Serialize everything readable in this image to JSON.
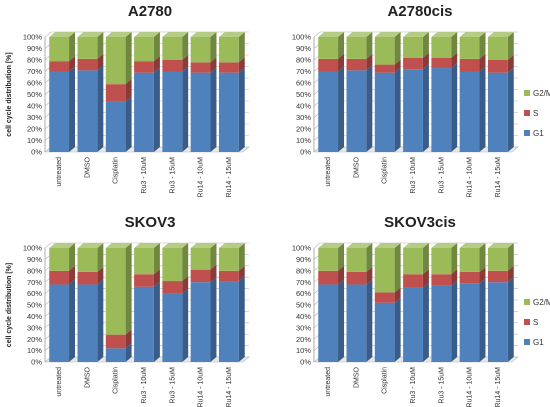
{
  "chart_data": [
    {
      "type": "bar",
      "stacked": true,
      "title": "A2780",
      "ylabel": "cell cycle distribution [%]",
      "ylim": [
        0,
        100
      ],
      "yticks": [
        "0%",
        "10%",
        "20%",
        "30%",
        "40%",
        "50%",
        "60%",
        "70%",
        "80%",
        "90%",
        "100%"
      ],
      "categories": [
        "untreated",
        "DMSO",
        "Cisplatin",
        "Ru3 - 10uM",
        "Ru3 - 15uM",
        "Ru14 - 10uM",
        "Ru14 - 15uM"
      ],
      "series": [
        {
          "name": "G1",
          "values": [
            70,
            71,
            44,
            69,
            70,
            69,
            69
          ]
        },
        {
          "name": "S",
          "values": [
            9,
            10,
            15,
            10,
            10,
            9,
            9
          ]
        },
        {
          "name": "G2/M",
          "values": [
            21,
            19,
            41,
            21,
            20,
            22,
            22
          ]
        }
      ],
      "grid": true
    },
    {
      "type": "bar",
      "stacked": true,
      "title": "A2780cis",
      "ylabel": "",
      "ylim": [
        0,
        100
      ],
      "yticks": [
        "0%",
        "10%",
        "20%",
        "30%",
        "40%",
        "50%",
        "60%",
        "70%",
        "80%",
        "90%",
        "100%"
      ],
      "categories": [
        "untreated",
        "DMSO",
        "Cisplatin",
        "Ru3 - 10uM",
        "Ru3 - 15uM",
        "Ru14 - 10uM",
        "Ru14 - 15uM"
      ],
      "series": [
        {
          "name": "G1",
          "values": [
            70,
            71,
            69,
            72,
            73,
            70,
            69
          ]
        },
        {
          "name": "S",
          "values": [
            11,
            10,
            7,
            10,
            9,
            11,
            11
          ]
        },
        {
          "name": "G2/M",
          "values": [
            19,
            19,
            24,
            18,
            18,
            19,
            20
          ]
        }
      ],
      "grid": true
    },
    {
      "type": "bar",
      "stacked": true,
      "title": "SKOV3",
      "ylabel": "cell cycle distribution [%]",
      "ylim": [
        0,
        100
      ],
      "yticks": [
        "0%",
        "10%",
        "20%",
        "30%",
        "40%",
        "50%",
        "60%",
        "70%",
        "80%",
        "90%",
        "100%"
      ],
      "categories": [
        "untreated",
        "DMSO",
        "Cisplatin",
        "Ru3 - 10uM",
        "Ru3 - 15uM",
        "Ru14 - 10uM",
        "Ru14 - 15uM"
      ],
      "series": [
        {
          "name": "G1",
          "values": [
            68,
            68,
            12,
            66,
            60,
            70,
            71
          ]
        },
        {
          "name": "S",
          "values": [
            12,
            11,
            12,
            11,
            11,
            11,
            9
          ]
        },
        {
          "name": "G2/M",
          "values": [
            20,
            21,
            76,
            23,
            29,
            19,
            20
          ]
        }
      ],
      "grid": true
    },
    {
      "type": "bar",
      "stacked": true,
      "title": "SKOV3cis",
      "ylabel": "",
      "ylim": [
        0,
        100
      ],
      "yticks": [
        "0%",
        "10%",
        "20%",
        "30%",
        "40%",
        "50%",
        "60%",
        "70%",
        "80%",
        "90%",
        "100%"
      ],
      "categories": [
        "untreated",
        "DMSO",
        "Cisplatin",
        "Ru3 - 10uM",
        "Ru3 - 15uM",
        "Ru14 - 10uM",
        "Ru14 - 15uM"
      ],
      "series": [
        {
          "name": "G1",
          "values": [
            68,
            68,
            52,
            65,
            67,
            69,
            70
          ]
        },
        {
          "name": "S",
          "values": [
            12,
            11,
            9,
            12,
            10,
            10,
            10
          ]
        },
        {
          "name": "G2/M",
          "values": [
            20,
            21,
            39,
            23,
            23,
            21,
            20
          ]
        }
      ],
      "grid": true
    }
  ],
  "legend": {
    "placement": "right",
    "items": [
      {
        "label": "G2/M",
        "color": "#9bbb59"
      },
      {
        "label": "S",
        "color": "#c0504d"
      },
      {
        "label": "G1",
        "color": "#4f81bd"
      }
    ]
  },
  "colors": {
    "G1": "#4f81bd",
    "S": "#c0504d",
    "G2/M": "#9bbb59"
  }
}
